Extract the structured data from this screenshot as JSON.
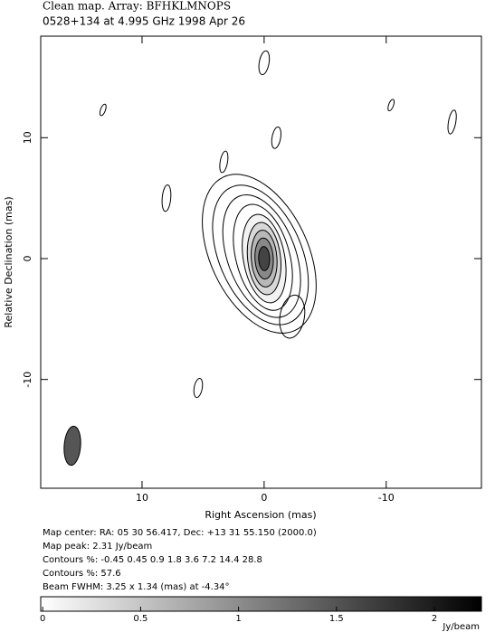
{
  "chart_data": {
    "type": "contour",
    "title": "Clean map.  Array: BFHKLMNOPS",
    "subtitle": "0528+134 at 4.995 GHz 1998 Apr 26",
    "x_label": "Right Ascension  (mas)",
    "y_label": "Relative Declination  (mas)",
    "xlim": [
      18.3,
      -17.8
    ],
    "ylim": [
      -19,
      18.4
    ],
    "xticks": [
      10,
      0,
      -10
    ],
    "yticks": [
      -10,
      0,
      10
    ],
    "contours": [
      {
        "x": 0.4,
        "y": 0.4,
        "rx": 4.0,
        "ry": 7.0,
        "angle": -25,
        "fill": "none"
      },
      {
        "x": 0.3,
        "y": 0.3,
        "rx": 3.4,
        "ry": 6.1,
        "angle": -23,
        "fill": "none"
      },
      {
        "x": 0.2,
        "y": 0.2,
        "rx": 2.8,
        "ry": 5.3,
        "angle": -20,
        "fill": "none"
      },
      {
        "x": 0.1,
        "y": 0.1,
        "rx": 2.2,
        "ry": 4.5,
        "angle": -15,
        "fill": "none"
      },
      {
        "x": 0,
        "y": 0,
        "rx": 1.7,
        "ry": 3.7,
        "angle": -10,
        "fill": "#f2f2f2"
      },
      {
        "x": 0,
        "y": 0,
        "rx": 1.35,
        "ry": 3.0,
        "angle": -6,
        "fill": "#d8d8d8"
      },
      {
        "x": 0,
        "y": 0,
        "rx": 1.05,
        "ry": 2.35,
        "angle": -4,
        "fill": "#b8b8b8"
      },
      {
        "x": 0,
        "y": 0,
        "rx": 0.75,
        "ry": 1.7,
        "angle": -3,
        "fill": "#888888"
      },
      {
        "x": 0,
        "y": 0,
        "rx": 0.45,
        "ry": 1.0,
        "angle": -2,
        "fill": "#444444"
      },
      {
        "x": -2.3,
        "y": -4.8,
        "rx": 1.0,
        "ry": 1.8,
        "angle": 10,
        "fill": "none"
      },
      {
        "x": 0,
        "y": 16.2,
        "rx": 0.4,
        "ry": 1.0,
        "angle": 10,
        "fill": "none"
      },
      {
        "x": -1.0,
        "y": 10.0,
        "rx": 0.35,
        "ry": 0.9,
        "angle": 10,
        "fill": "none"
      },
      {
        "x": 3.3,
        "y": 8.0,
        "rx": 0.3,
        "ry": 0.9,
        "angle": 10,
        "fill": "none"
      },
      {
        "x": 8.0,
        "y": 5.0,
        "rx": 0.35,
        "ry": 1.1,
        "angle": 5,
        "fill": "none"
      },
      {
        "x": 5.4,
        "y": -10.7,
        "rx": 0.33,
        "ry": 0.8,
        "angle": 10,
        "fill": "none"
      },
      {
        "x": 13.2,
        "y": 12.3,
        "rx": 0.2,
        "ry": 0.5,
        "angle": 20,
        "fill": "none"
      },
      {
        "x": -10.4,
        "y": 12.7,
        "rx": 0.2,
        "ry": 0.5,
        "angle": 20,
        "fill": "none"
      },
      {
        "x": -15.4,
        "y": 11.3,
        "rx": 0.3,
        "ry": 1.0,
        "angle": 10,
        "fill": "none"
      }
    ],
    "beam": {
      "major": 3.25,
      "minor": 1.34,
      "pa": -4.34,
      "color": "#555555"
    },
    "info_lines": [
      "Map center:  RA: 05 30 56.417,  Dec: +13 31 55.150 (2000.0)",
      "Map peak: 2.31 Jy/beam",
      "Contours %: -0.45 0.45 0.9 1.8 3.6 7.2 14.4 28.8",
      "Contours %: 57.6",
      "Beam FWHM: 3.25 x 1.34 (mas) at -4.34°"
    ],
    "colorbar": {
      "lim": [
        -0.01,
        2.24
      ],
      "ticks": [
        0,
        0.5,
        1,
        1.5,
        2
      ],
      "label": "Jy/beam"
    }
  }
}
